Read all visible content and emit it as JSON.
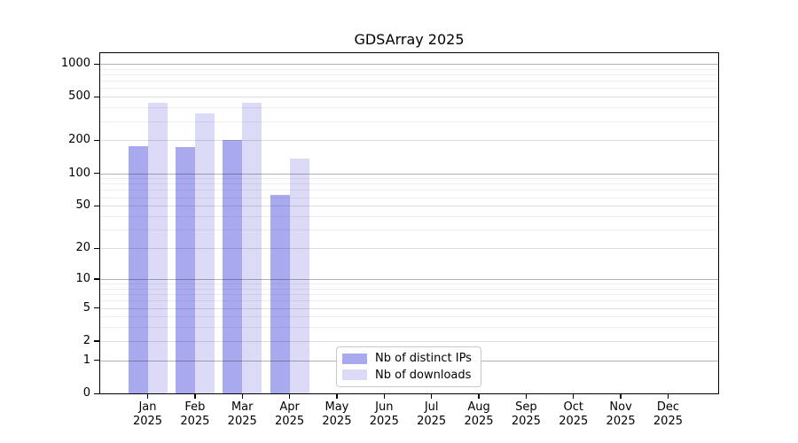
{
  "chart_data": {
    "type": "bar",
    "title": "GDSArray 2025",
    "categories": [
      "Jan",
      "Feb",
      "Mar",
      "Apr",
      "May",
      "Jun",
      "Jul",
      "Aug",
      "Sep",
      "Oct",
      "Nov",
      "Dec"
    ],
    "category_year": "2025",
    "series": [
      {
        "name": "Nb of distinct IPs",
        "color": "#a9a9f0",
        "values": [
          177,
          174,
          200,
          63,
          0,
          0,
          0,
          0,
          0,
          0,
          0,
          0
        ]
      },
      {
        "name": "Nb of downloads",
        "color": "#dbdbf8",
        "values": [
          440,
          350,
          440,
          137,
          0,
          0,
          0,
          0,
          0,
          0,
          0,
          0
        ]
      }
    ],
    "yscale": "log1p",
    "ylim": [
      0,
      1250
    ],
    "yticks": [
      0,
      1,
      2,
      5,
      10,
      20,
      50,
      100,
      200,
      500,
      1000
    ],
    "grid": true,
    "legend_position": "bottom-center",
    "style": {
      "frame_color": "#000000",
      "grid_major_color": "rgba(0,0,0,0.30)",
      "grid_mid_color": "rgba(0,0,0,0.13)",
      "grid_minor_color": "rgba(0,0,0,0.065)",
      "background": "#ffffff"
    }
  }
}
